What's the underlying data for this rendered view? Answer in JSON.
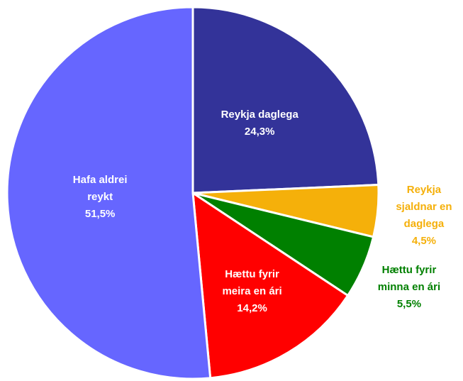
{
  "chart_data": {
    "type": "pie",
    "categories": [
      "Reykja daglega",
      "Reykja sjaldnar en daglega",
      "Hættu fyrir minna en ári",
      "Hættu fyrir meira en ári",
      "Hafa aldrei reykt"
    ],
    "values": [
      24.3,
      4.5,
      5.5,
      14.2,
      51.5
    ],
    "value_labels": [
      "24,3%",
      "4,5%",
      "5,5%",
      "14,2%",
      "51,5%"
    ],
    "colors": [
      "#333399",
      "#f5b00a",
      "#008000",
      "#ff0000",
      "#6666ff"
    ],
    "label_colors": [
      "#ffffff",
      "#f5b00a",
      "#008000",
      "#ffffff",
      "#ffffff"
    ]
  }
}
